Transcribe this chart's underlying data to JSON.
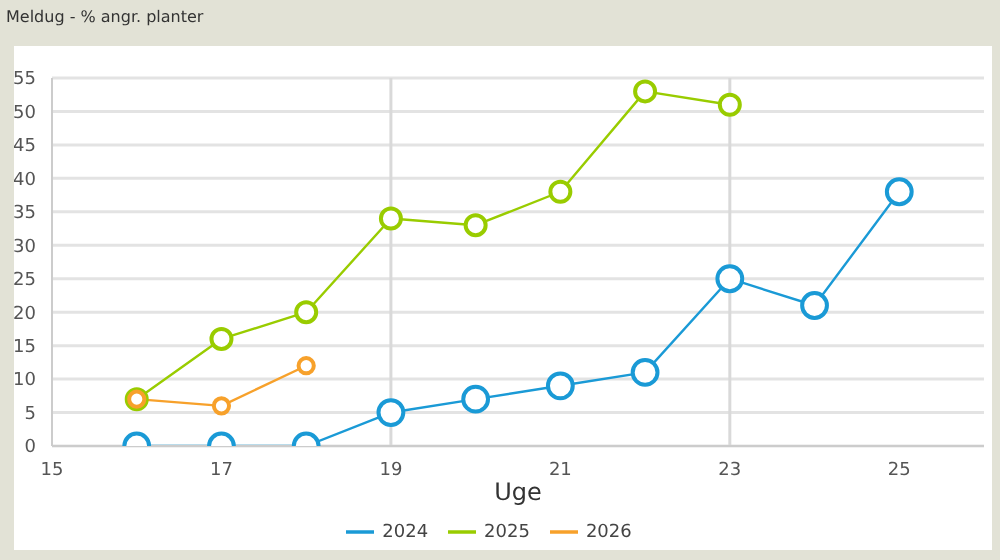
{
  "chart_data": {
    "type": "line",
    "title": "Meldug - % angr. planter",
    "xlabel": "Uge",
    "xlim": [
      15,
      26
    ],
    "xticks": [
      15,
      17,
      19,
      21,
      23,
      25
    ],
    "ylim": [
      0,
      55
    ],
    "yticks": [
      0,
      5,
      10,
      15,
      20,
      25,
      30,
      35,
      40,
      45,
      50,
      55
    ],
    "grid": "y",
    "legend": "bottom",
    "marker": "circle",
    "line_style": "solid",
    "ref_lines": [
      {
        "axis": "x",
        "value": 19,
        "color": "#d9d9d9"
      },
      {
        "axis": "x",
        "value": 23,
        "color": "#d9d9d9"
      }
    ],
    "series": [
      {
        "name": "2024",
        "color": "#1a9ad6",
        "x": [
          16,
          17,
          18,
          19,
          20,
          21,
          22,
          23,
          24,
          25
        ],
        "values": [
          0,
          0,
          0,
          5,
          7,
          9,
          11,
          25,
          21,
          38
        ]
      },
      {
        "name": "2025",
        "color": "#99cc00",
        "x": [
          16,
          17,
          18,
          19,
          20,
          21,
          22,
          23
        ],
        "values": [
          7,
          16,
          20,
          34,
          33,
          38,
          53,
          51
        ]
      },
      {
        "name": "2026",
        "color": "#f7a12b",
        "x": [
          16,
          17,
          18
        ],
        "values": [
          7,
          6,
          12
        ]
      }
    ]
  }
}
